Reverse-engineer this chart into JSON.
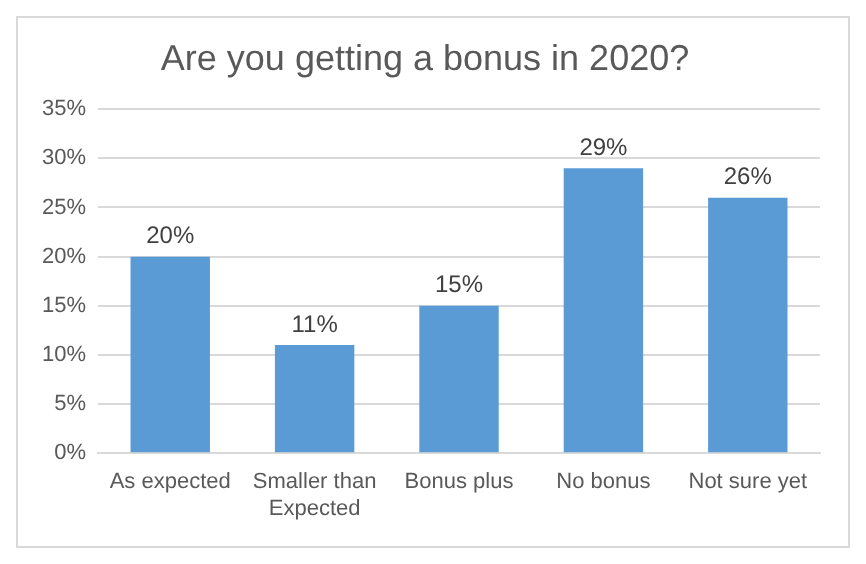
{
  "chart_data": {
    "type": "bar",
    "title": "Are you getting a bonus in 2020?",
    "categories": [
      "As expected",
      "Smaller than Expected",
      "Bonus plus",
      "No bonus",
      "Not sure yet"
    ],
    "values": [
      20,
      11,
      15,
      29,
      26
    ],
    "value_labels": [
      "20%",
      "11%",
      "15%",
      "29%",
      "26%"
    ],
    "color": "#5b9bd5",
    "ylim": [
      0,
      35
    ],
    "yticks": [
      {
        "value": 0,
        "label": "0%"
      },
      {
        "value": 5,
        "label": "5%"
      },
      {
        "value": 10,
        "label": "10%"
      },
      {
        "value": 15,
        "label": "15%"
      },
      {
        "value": 20,
        "label": "20%"
      },
      {
        "value": 25,
        "label": "25%"
      },
      {
        "value": 30,
        "label": "30%"
      },
      {
        "value": 35,
        "label": "35%"
      }
    ],
    "grid": "y"
  }
}
